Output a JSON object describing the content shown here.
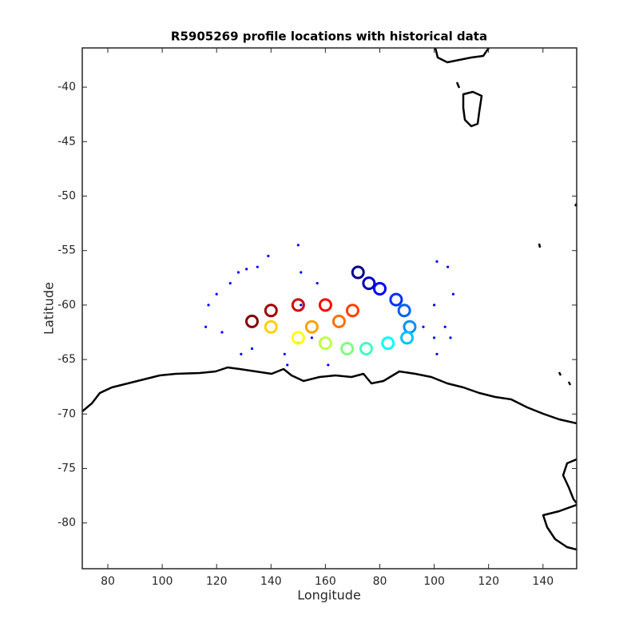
{
  "chart_data": {
    "type": "scatter",
    "title": "R5905269 profile locations with historical data",
    "xlabel": "Longitude",
    "ylabel": "Latitude",
    "xlim": [
      70.6,
      252.4
    ],
    "ylim": [
      -84.2,
      -36.4
    ],
    "xticks": [
      80,
      100,
      120,
      140,
      160,
      {
        "value": 180,
        "label": "80"
      },
      {
        "value": 200,
        "label": "100"
      },
      {
        "value": 220,
        "label": "120"
      },
      {
        "value": 240,
        "label": "140"
      }
    ],
    "yticks": [
      -40,
      -45,
      -50,
      -55,
      -60,
      -65,
      -70,
      -75,
      -80
    ],
    "series": [
      {
        "color": "#0000ff",
        "x": [
          117,
          120,
          125,
          128,
          131,
          135,
          139,
          150,
          151,
          151,
          150,
          145,
          146,
          129,
          133,
          161,
          155,
          201,
          200,
          200,
          201,
          204,
          206,
          207,
          205,
          196,
          116,
          122,
          157
        ],
        "values": [
          -60,
          -59,
          -58,
          -57,
          -56.7,
          -56.5,
          -55.5,
          -54.5,
          -57,
          -60,
          -63.5,
          -64.5,
          -65.5,
          -64.5,
          -64,
          -65.5,
          -63,
          -56,
          -60,
          -63,
          -64.5,
          -62,
          -63,
          -59,
          -56.5,
          -62,
          -62,
          -62.5,
          -58
        ]
      },
      {
        "colors": [
          "#00008f",
          "#0000c0",
          "#0000ff",
          "#0030ff",
          "#0060ff",
          "#0090ff",
          "#00c0ff",
          "#00ffff",
          "#40ffbf",
          "#80ff80",
          "#bfff40",
          "#ffff00",
          "#ffd000",
          "#ffa000",
          "#ff7000",
          "#ff4000",
          "#ff0000",
          "#d00000",
          "#a00000",
          "#800000"
        ],
        "x": [
          172,
          176,
          180,
          186,
          189,
          191,
          190,
          183,
          175,
          168,
          160,
          150,
          140,
          155,
          165,
          170,
          160,
          150,
          140,
          133
        ],
        "values": [
          -57,
          -58,
          -58.5,
          -59.5,
          -60.5,
          -62,
          -63,
          -63.5,
          -64,
          -64,
          -63.5,
          -63,
          -62,
          -62,
          -61.5,
          -60.5,
          -60,
          -60,
          -60.5,
          -61.5
        ]
      }
    ]
  }
}
